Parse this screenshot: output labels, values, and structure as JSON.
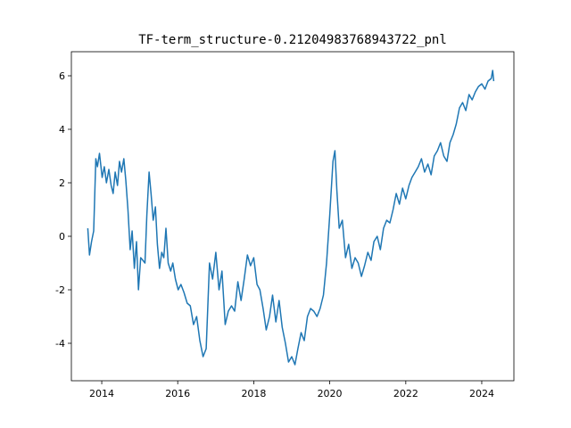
{
  "chart_data": {
    "type": "line",
    "title": "TF-term_structure-0.21204983768943722_pnl",
    "xlabel": "",
    "ylabel": "",
    "x_ticks": [
      "2014",
      "2016",
      "2018",
      "2020",
      "2022",
      "2024"
    ],
    "y_ticks": [
      "-4",
      "-2",
      "0",
      "2",
      "4",
      "6"
    ],
    "xlim": [
      "2013-03-15",
      "2024-11-05"
    ],
    "ylim": [
      -5.4,
      6.9
    ],
    "grid": false,
    "series": [
      {
        "color": "#1f77b4",
        "x": [
          "2013-08-20",
          "2013-09-05",
          "2013-09-25",
          "2013-10-15",
          "2013-11-05",
          "2013-11-20",
          "2013-12-10",
          "2014-01-05",
          "2014-01-25",
          "2014-02-15",
          "2014-03-10",
          "2014-04-01",
          "2014-04-20",
          "2014-05-10",
          "2014-06-01",
          "2014-06-20",
          "2014-07-10",
          "2014-08-01",
          "2014-08-20",
          "2014-09-10",
          "2014-10-01",
          "2014-10-20",
          "2014-11-10",
          "2014-12-01",
          "2014-12-20",
          "2015-01-10",
          "2015-02-01",
          "2015-02-20",
          "2015-03-10",
          "2015-04-01",
          "2015-04-20",
          "2015-05-10",
          "2015-06-01",
          "2015-06-20",
          "2015-07-10",
          "2015-08-01",
          "2015-08-20",
          "2015-09-10",
          "2015-10-01",
          "2015-10-25",
          "2015-11-15",
          "2015-12-10",
          "2016-01-05",
          "2016-02-01",
          "2016-03-01",
          "2016-04-01",
          "2016-05-01",
          "2016-06-01",
          "2016-07-01",
          "2016-08-01",
          "2016-09-01",
          "2016-10-01",
          "2016-11-01",
          "2016-12-01",
          "2017-01-01",
          "2017-02-01",
          "2017-03-01",
          "2017-04-01",
          "2017-05-01",
          "2017-06-01",
          "2017-07-01",
          "2017-08-01",
          "2017-09-01",
          "2017-10-01",
          "2017-11-01",
          "2017-12-01",
          "2018-01-01",
          "2018-02-01",
          "2018-03-01",
          "2018-04-01",
          "2018-05-01",
          "2018-06-01",
          "2018-07-01",
          "2018-08-01",
          "2018-09-01",
          "2018-10-01",
          "2018-11-01",
          "2018-12-01",
          "2019-01-01",
          "2019-02-01",
          "2019-03-01",
          "2019-04-01",
          "2019-05-01",
          "2019-06-01",
          "2019-07-01",
          "2019-08-01",
          "2019-09-01",
          "2019-10-01",
          "2019-11-01",
          "2019-12-01",
          "2020-01-01",
          "2020-02-01",
          "2020-02-20",
          "2020-03-10",
          "2020-04-01",
          "2020-05-01",
          "2020-06-01",
          "2020-07-01",
          "2020-08-01",
          "2020-09-01",
          "2020-10-01",
          "2020-11-01",
          "2020-12-01",
          "2021-01-01",
          "2021-02-01",
          "2021-03-01",
          "2021-04-01",
          "2021-05-01",
          "2021-06-01",
          "2021-07-01",
          "2021-08-01",
          "2021-09-01",
          "2021-10-01",
          "2021-11-01",
          "2021-12-01",
          "2022-01-01",
          "2022-02-01",
          "2022-03-01",
          "2022-04-01",
          "2022-05-01",
          "2022-06-01",
          "2022-07-01",
          "2022-08-01",
          "2022-09-01",
          "2022-10-01",
          "2022-11-01",
          "2022-12-01",
          "2023-01-01",
          "2023-02-01",
          "2023-03-01",
          "2023-04-01",
          "2023-05-01",
          "2023-06-01",
          "2023-07-01",
          "2023-08-01",
          "2023-09-01",
          "2023-10-01",
          "2023-11-01",
          "2023-12-01",
          "2024-01-01",
          "2024-02-01",
          "2024-03-01",
          "2024-04-01",
          "2024-04-15",
          "2024-04-25"
        ],
        "y": [
          0.3,
          -0.7,
          -0.2,
          0.2,
          2.9,
          2.6,
          3.1,
          2.2,
          2.6,
          2.0,
          2.5,
          1.9,
          1.6,
          2.4,
          1.9,
          2.8,
          2.4,
          2.9,
          2.1,
          1.0,
          -0.5,
          0.2,
          -1.2,
          -0.2,
          -2.0,
          -0.8,
          -0.9,
          -1.0,
          0.8,
          2.4,
          1.6,
          0.6,
          1.1,
          -0.3,
          -1.2,
          -0.6,
          -0.8,
          0.3,
          -1.0,
          -1.3,
          -1.0,
          -1.6,
          -2.0,
          -1.8,
          -2.1,
          -2.5,
          -2.6,
          -3.3,
          -3.0,
          -3.9,
          -4.5,
          -4.2,
          -1.0,
          -1.6,
          -0.6,
          -2.0,
          -1.3,
          -3.3,
          -2.8,
          -2.6,
          -2.8,
          -1.7,
          -2.4,
          -1.6,
          -0.7,
          -1.1,
          -0.8,
          -1.8,
          -2.0,
          -2.7,
          -3.5,
          -3.0,
          -2.2,
          -3.2,
          -2.4,
          -3.4,
          -4.0,
          -4.7,
          -4.5,
          -4.8,
          -4.2,
          -3.6,
          -3.9,
          -3.0,
          -2.7,
          -2.8,
          -3.0,
          -2.7,
          -2.2,
          -1.0,
          0.8,
          2.8,
          3.2,
          1.7,
          0.3,
          0.6,
          -0.8,
          -0.3,
          -1.2,
          -0.8,
          -1.0,
          -1.5,
          -1.1,
          -0.6,
          -0.9,
          -0.2,
          0.0,
          -0.5,
          0.3,
          0.6,
          0.5,
          1.0,
          1.6,
          1.2,
          1.8,
          1.4,
          1.9,
          2.2,
          2.4,
          2.6,
          2.9,
          2.4,
          2.7,
          2.3,
          3.0,
          3.2,
          3.5,
          3.0,
          2.8,
          3.5,
          3.8,
          4.2,
          4.8,
          5.0,
          4.7,
          5.3,
          5.1,
          5.4,
          5.6,
          5.7,
          5.5,
          5.8,
          5.9,
          6.2,
          5.8
        ]
      }
    ]
  }
}
